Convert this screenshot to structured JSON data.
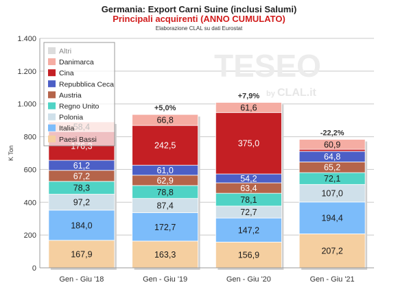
{
  "header": {
    "title": "Germania: Export Carni Suine (inclusi Salumi)",
    "subtitle": "Principali acquirenti (ANNO CUMULATO)",
    "source": "Elaborazione CLAL su dati Eurostat"
  },
  "watermark": {
    "main": "TESEO",
    "sub_by": "by",
    "sub_brand": "CLAL.it"
  },
  "chart_data": {
    "type": "bar",
    "stacked": true,
    "ylabel": "K Ton",
    "ylim": [
      0,
      1400
    ],
    "yticks": [
      0,
      200,
      400,
      600,
      800,
      1000,
      1200,
      1400
    ],
    "ytick_labels": [
      "0",
      "200",
      "400",
      "600",
      "800",
      "1.000",
      "1.200",
      "1.400"
    ],
    "grid": true,
    "legend_position": "top-left",
    "categories": [
      "Gen - Giu '18",
      "Gen - Giu '19",
      "Gen - Giu '20",
      "Gen - Giu '21"
    ],
    "series": [
      {
        "name": "Paesi Bassi",
        "color": "#f5cfa0",
        "values": [
          167.9,
          163.3,
          156.9,
          207.2
        ],
        "labels": [
          "167,9",
          "163,3",
          "156,9",
          "207,2"
        ]
      },
      {
        "name": "Italia",
        "color": "#7cbcfa",
        "values": [
          184.0,
          172.7,
          147.2,
          194.4
        ],
        "labels": [
          "184,0",
          "172,7",
          "147,2",
          "194,4"
        ]
      },
      {
        "name": "Polonia",
        "color": "#cfe0ea",
        "values": [
          97.2,
          87.4,
          72.7,
          107.0
        ],
        "labels": [
          "97,2",
          "87,4",
          "72,7",
          "107,0"
        ]
      },
      {
        "name": "Regno Unito",
        "color": "#4fd3c5",
        "values": [
          78.3,
          78.8,
          78.1,
          72.1
        ],
        "labels": [
          "78,3",
          "78,8",
          "78,1",
          "72,1"
        ]
      },
      {
        "name": "Austria",
        "color": "#b5644a",
        "values": [
          67.2,
          62.9,
          63.4,
          65.2
        ],
        "labels": [
          "67,2",
          "62,9",
          "63,4",
          "65,2"
        ]
      },
      {
        "name": "Repubblica Ceca",
        "color": "#4c5fc6",
        "values": [
          61.2,
          61.0,
          54.2,
          64.8
        ],
        "labels": [
          "61,2",
          "61,0",
          "54,2",
          "64,8"
        ]
      },
      {
        "name": "Cina",
        "color": "#c41f24",
        "values": [
          176.3,
          242.5,
          375.0,
          12.0
        ],
        "labels": [
          "176,3",
          "242,5",
          "375,0",
          ""
        ]
      },
      {
        "name": "Danimarca",
        "color": "#f5ada3",
        "values": [
          58.4,
          66.8,
          61.6,
          60.9
        ],
        "labels": [
          "58,4",
          "66,8",
          "61,6",
          "60,9"
        ]
      },
      {
        "name": "Altri",
        "color": "#dcdcdc",
        "values": [
          0,
          0,
          0,
          0
        ],
        "labels": [
          "",
          "",
          "",
          ""
        ]
      }
    ],
    "annotations": [
      "",
      "+5,0%",
      "+7,9%",
      "-22,2%"
    ]
  }
}
